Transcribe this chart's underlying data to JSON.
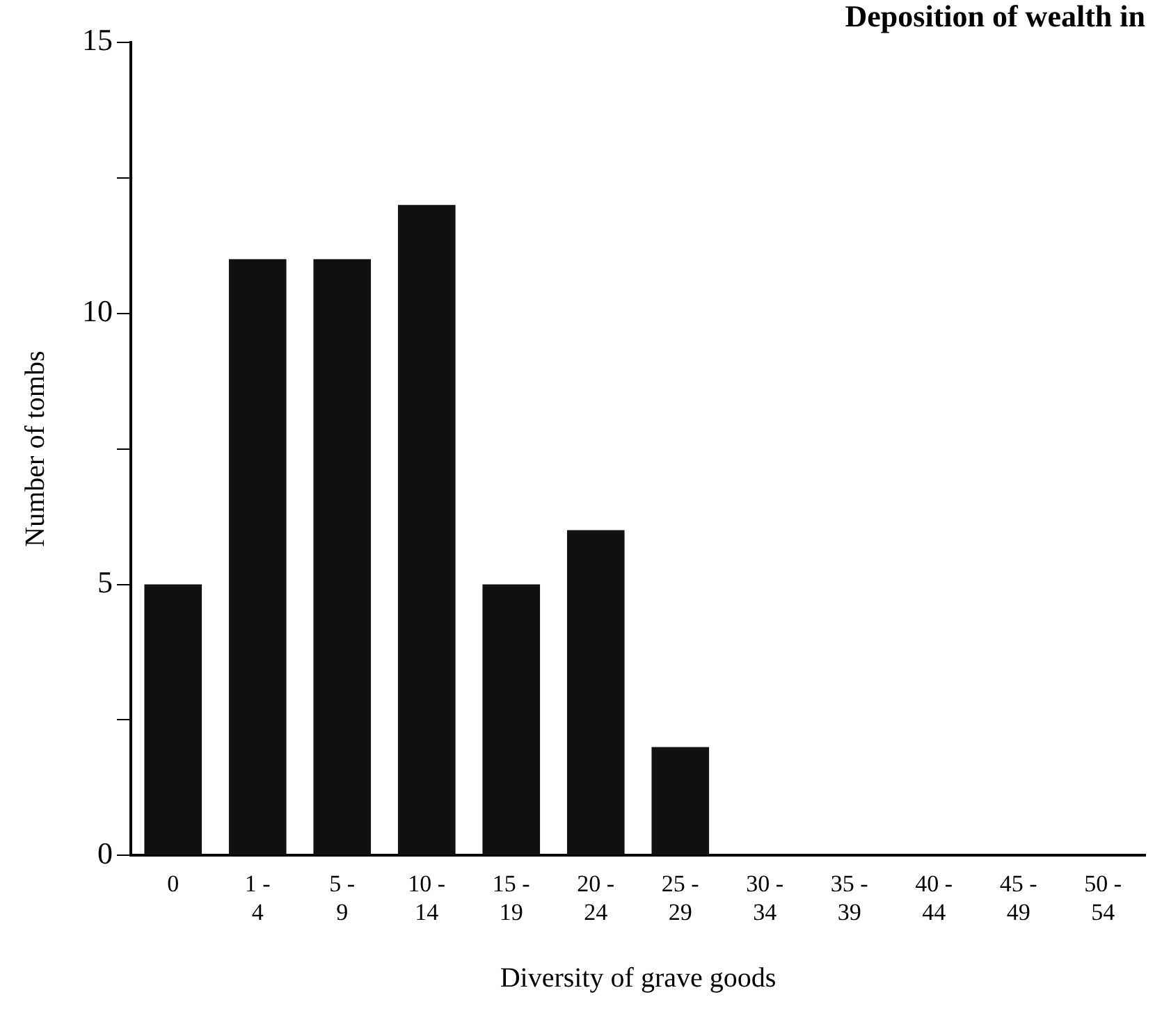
{
  "chart_data": {
    "type": "bar",
    "title": "Deposition of wealth in",
    "xlabel": "Diversity of grave goods",
    "ylabel": "Number of tombs",
    "categories": [
      "0",
      "1 -\n4",
      "5 -\n9",
      "10 -\n14",
      "15 -\n19",
      "20 -\n24",
      "25 -\n29",
      "30 -\n34",
      "35 -\n39",
      "40 -\n44",
      "45 -\n49",
      "50 -\n54"
    ],
    "values": [
      5,
      11,
      11,
      12,
      5,
      6,
      2,
      0,
      0,
      0,
      0,
      0
    ],
    "color": "#111111",
    "ylim": [
      0,
      15
    ],
    "yticks": [
      0,
      {
        "value": 2.5,
        "label": null
      },
      5,
      {
        "value": 7.5,
        "label": null
      },
      10,
      {
        "value": 12.5,
        "label": null
      },
      15
    ],
    "grid": false,
    "legend": false
  }
}
